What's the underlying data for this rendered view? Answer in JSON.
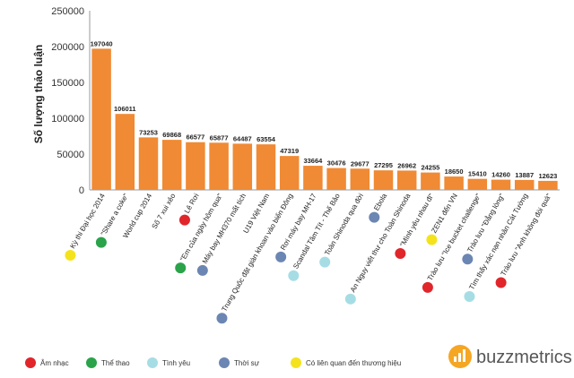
{
  "chart_data": {
    "type": "bar",
    "ylabel": "Số lượng thảo luận",
    "ylim": [
      0,
      250000
    ],
    "yticks": [
      0,
      50000,
      100000,
      150000,
      200000,
      250000
    ],
    "bar_color": "#f08a34",
    "categories": [
      "Kỳ thi Đại học 2014",
      "\"Share a coke\"",
      "World cup 2014",
      "Số 7 xui xẻo",
      "Lê Rơi",
      "\"Em của ngày hôm qua\"",
      "Máy bay MH370 mất tích",
      "U19 Việt Nam",
      "Trung Quốc đặt giàn khoan vào biển Đông",
      "Rơi máy bay MH-17",
      "Scandal Tâm Tít - Thế Bảo",
      "Toàn Shinoda qua đời",
      "Ebola",
      "An Nguy viết thư cho Toàn Shinoda",
      "\"Mình yêu nhau đi\"",
      "ZEN1 đến VN",
      "Trào lưu \"Ice bucket challenge\"",
      "Trào lưu \"Đẳng lòng\"",
      "Tìm thấy xác nạn nhân Cát Tường",
      "Trào lưu \"Anh không đòi quà\""
    ],
    "values": [
      197040,
      106011,
      73253,
      69868,
      66577,
      65877,
      64487,
      63554,
      47319,
      33664,
      30476,
      29677,
      27295,
      26962,
      24255,
      18650,
      15410,
      14260,
      13887,
      12623
    ],
    "value_labels": [
      "197040",
      "106011",
      "73253",
      "69868",
      "66577",
      "65877",
      "64487",
      "63554",
      "47319",
      "33664",
      "30476",
      "29677",
      "27295",
      "26962",
      "24255",
      "18650",
      "15410",
      "14260",
      "13887",
      "12623"
    ],
    "category_markers": [
      "yellow",
      "green",
      "",
      "",
      "red",
      "green",
      "steel",
      "",
      "steel",
      "steel",
      "lightblue",
      "lightblue",
      "steel",
      "lightblue",
      "red",
      "yellow",
      "red",
      "steel",
      "lightblue",
      "red"
    ],
    "legend": [
      {
        "key": "red",
        "label": "Âm nhạc",
        "color": "#e0262b"
      },
      {
        "key": "green",
        "label": "Thể thao",
        "color": "#2aa34a"
      },
      {
        "key": "lightblue",
        "label": "Tình yêu",
        "color": "#a6dde5"
      },
      {
        "key": "steel",
        "label": "Thời sự",
        "color": "#6b86b3"
      },
      {
        "key": "yellow",
        "label": "Có liên quan đến thương hiệu",
        "color": "#f4e31c"
      }
    ]
  },
  "brand": {
    "name": "buzzmetrics",
    "accent": "#f5a623"
  }
}
